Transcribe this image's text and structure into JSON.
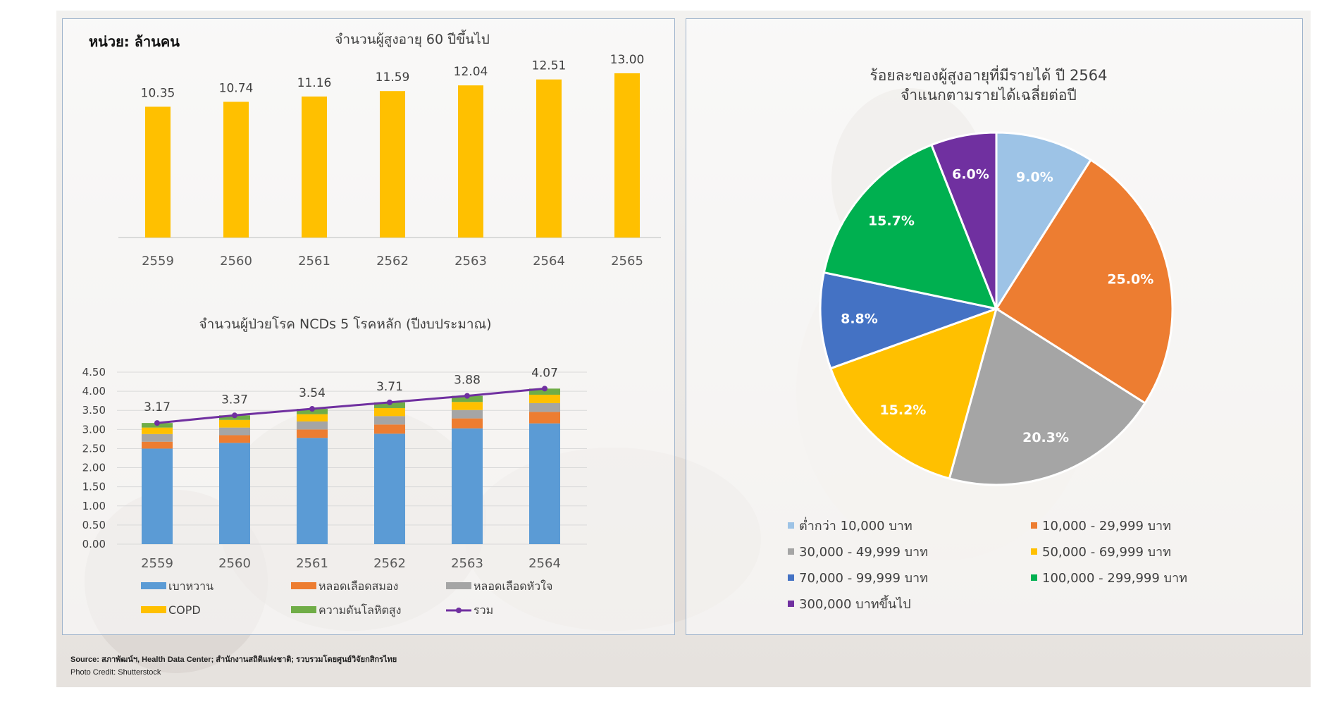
{
  "unit_label": "หน่วย: ล้านคน",
  "colors": {
    "gold": "#ffc000",
    "blue": "#5b9bd5",
    "orange": "#ed7d31",
    "gray": "#a5a5a5",
    "green": "#70ad47",
    "purple": "#7030a0",
    "pie_light_blue": "#9dc3e6",
    "pie_orange": "#ed7d31",
    "pie_gray": "#a5a5a5",
    "pie_gold": "#ffc000",
    "pie_blue": "#4472c4",
    "pie_green": "#00b050",
    "pie_purple": "#7030a0"
  },
  "chart_data": [
    {
      "type": "bar",
      "title": "จำนวนผู้สูงอายุ 60 ปีขึ้นไป",
      "categories": [
        "2559",
        "2560",
        "2561",
        "2562",
        "2563",
        "2564",
        "2565"
      ],
      "values": [
        10.35,
        10.74,
        11.16,
        11.59,
        12.04,
        12.51,
        13.0
      ],
      "labels": [
        "10.35",
        "10.74",
        "11.16",
        "11.59",
        "12.04",
        "12.51",
        "13.00"
      ],
      "ylim": [
        0,
        14
      ]
    },
    {
      "type": "bar",
      "stacked": true,
      "title": "จำนวนผู้ป่วยโรค NCDs 5 โรคหลัก (ปีงบประมาณ)",
      "categories": [
        "2559",
        "2560",
        "2561",
        "2562",
        "2563",
        "2564"
      ],
      "yticks": [
        "0.00",
        "0.50",
        "1.00",
        "1.50",
        "2.00",
        "2.50",
        "3.00",
        "3.50",
        "4.00",
        "4.50"
      ],
      "ylim": [
        0,
        4.5
      ],
      "series": [
        {
          "name": "เบาหวาน",
          "values": [
            2.5,
            2.65,
            2.78,
            2.89,
            3.03,
            3.16
          ]
        },
        {
          "name": "หลอดเลือดสมอง",
          "values": [
            0.18,
            0.2,
            0.22,
            0.24,
            0.26,
            0.3
          ]
        },
        {
          "name": "หลอดเลือดหัวใจ",
          "values": [
            0.2,
            0.2,
            0.21,
            0.22,
            0.22,
            0.23
          ]
        },
        {
          "name": "COPD",
          "values": [
            0.17,
            0.2,
            0.19,
            0.21,
            0.21,
            0.22
          ]
        },
        {
          "name": "ความดันโลหิตสูง",
          "values": [
            0.12,
            0.12,
            0.14,
            0.15,
            0.16,
            0.16
          ]
        }
      ],
      "line": {
        "name": "รวม",
        "values": [
          3.17,
          3.37,
          3.54,
          3.71,
          3.88,
          4.07
        ],
        "labels": [
          "3.17",
          "3.37",
          "3.54",
          "3.71",
          "3.88",
          "4.07"
        ]
      },
      "legend_placement": "bottom"
    },
    {
      "type": "pie",
      "title_line1": "ร้อยละของผู้สูงอายุที่มีรายได้ ปี 2564",
      "title_line2": "จำแนกตามรายได้เฉลี่ยต่อปี",
      "slices": [
        {
          "name": "ต่ำกว่า 10,000 บาท",
          "value": 9.0,
          "label": "9.0%"
        },
        {
          "name": "10,000 - 29,999 บาท",
          "value": 25.0,
          "label": "25.0%"
        },
        {
          "name": "30,000 - 49,999 บาท",
          "value": 20.3,
          "label": "20.3%"
        },
        {
          "name": "50,000 - 69,999 บาท",
          "value": 15.2,
          "label": "15.2%"
        },
        {
          "name": "70,000 - 99,999 บาท",
          "value": 8.8,
          "label": "8.8%"
        },
        {
          "name": "100,000 - 299,999 บาท",
          "value": 15.7,
          "label": "15.7%"
        },
        {
          "name": "300,000 บาทขึ้นไป",
          "value": 6.0,
          "label": "6.0%"
        }
      ],
      "legend_placement": "bottom"
    }
  ],
  "footer": {
    "source": "Source: สภาพัฒน์ฯ, Health Data Center; สำนักงานสถิติแห่งชาติ; รวบรวมโดยศูนย์วิจัยกสิกรไทย",
    "credit": "Photo Credit: Shutterstock"
  }
}
